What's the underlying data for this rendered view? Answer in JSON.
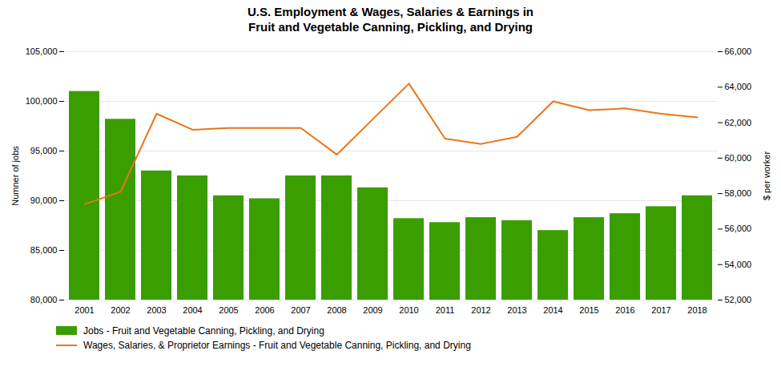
{
  "chart_data": {
    "type": "bar",
    "title": "U.S. Employment & Wages, Salaries & Earnings in\nFruit and Vegetable Canning, Pickling, and Drying",
    "categories": [
      "2001",
      "2002",
      "2003",
      "2004",
      "2005",
      "2006",
      "2007",
      "2008",
      "2009",
      "2010",
      "2011",
      "2012",
      "2013",
      "2014",
      "2015",
      "2016",
      "2017",
      "2018"
    ],
    "series": [
      {
        "name": "Jobs - Fruit and Vegetable Canning, Pickling, and Drying",
        "type": "bar",
        "color": "#3a9e00",
        "values": [
          101000,
          98200,
          93000,
          92500,
          90500,
          90200,
          92500,
          92500,
          91300,
          88200,
          87800,
          88300,
          88000,
          87000,
          88300,
          88700,
          89400,
          90500
        ]
      },
      {
        "name": "Wages, Salaries, & Proprietor Earnings - Fruit and Vegetable Canning, Pickling, and Drying",
        "type": "line",
        "color": "#e8761a",
        "axis": "y2",
        "values": [
          57400,
          58100,
          62500,
          61600,
          61700,
          61700,
          61700,
          60200,
          62200,
          64200,
          61100,
          60800,
          61200,
          63200,
          62700,
          62800,
          62500,
          62300
        ]
      }
    ],
    "ylabel": "Numner of jobs",
    "y2label": "$ per worker",
    "ylim": [
      80000,
      105000
    ],
    "yticks": [
      {
        "value": 80000,
        "label": "80,000"
      },
      {
        "value": 85000,
        "label": "85,000"
      },
      {
        "value": 90000,
        "label": "90,000"
      },
      {
        "value": 95000,
        "label": "95,000"
      },
      {
        "value": 100000,
        "label": "100,000"
      },
      {
        "value": 105000,
        "label": "105,000"
      }
    ],
    "y2lim": [
      52000,
      66000
    ],
    "y2ticks": [
      {
        "value": 52000,
        "label": "52,000"
      },
      {
        "value": 54000,
        "label": "54,000"
      },
      {
        "value": 56000,
        "label": "56,000"
      },
      {
        "value": 58000,
        "label": "58,000"
      },
      {
        "value": 60000,
        "label": "60,000"
      },
      {
        "value": 62000,
        "label": "62,000"
      },
      {
        "value": 64000,
        "label": "64,000"
      },
      {
        "value": 66000,
        "label": "66,000"
      }
    ],
    "grid": true,
    "legend": "bottom"
  }
}
